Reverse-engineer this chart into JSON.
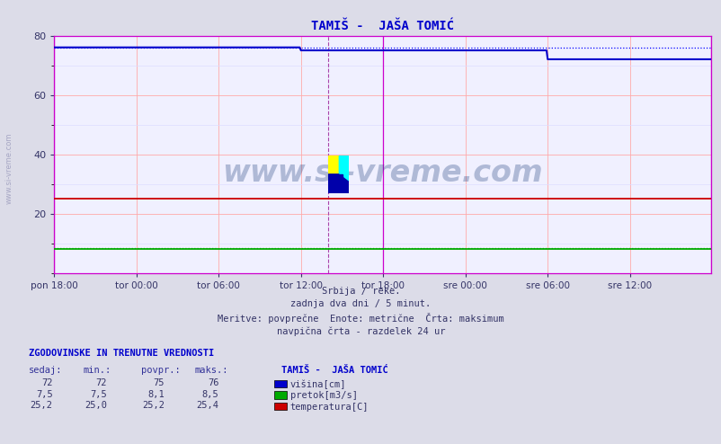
{
  "title": "TAMIŠ -  JAŠA TOMIĆ",
  "bg_color": "#dcdce8",
  "plot_bg_color": "#f0f0ff",
  "grid_color_major": "#ffaaaa",
  "grid_color_minor": "#ddddff",
  "ylim": [
    0,
    80
  ],
  "yticks": [
    20,
    40,
    60,
    80
  ],
  "xlabel_ticks": [
    "pon 18:00",
    "tor 00:00",
    "tor 06:00",
    "tor 12:00",
    "tor 18:00",
    "sre 00:00",
    "sre 06:00",
    "sre 12:00"
  ],
  "n_points": 576,
  "line_blue": "#0000cc",
  "line_green": "#00aa00",
  "line_red": "#cc0000",
  "dotted_blue": "#0000ff",
  "dotted_green": "#009900",
  "vline_magenta": "#cc00cc",
  "footer_line1": "Srbija / reke.",
  "footer_line2": "zadnja dva dni / 5 minut.",
  "footer_line3": "Meritve: povprečne  Enote: metrične  Črta: maksimum",
  "footer_line4": "navpična črta - razdelek 24 ur",
  "table_header": "ZGODOVINSKE IN TRENUTNE VREDNOSTI",
  "col_headers": [
    "sedaj:",
    "min.:",
    "povpr.:",
    "maks.:"
  ],
  "row1": [
    "72",
    "72",
    "75",
    "76"
  ],
  "row2": [
    "7,5",
    "7,5",
    "8,1",
    "8,5"
  ],
  "row3": [
    "25,2",
    "25,0",
    "25,2",
    "25,4"
  ],
  "legend_label": "TAMIŠ -  JAŠA TOMIĆ",
  "legend_items": [
    "višina[cm]",
    "pretok[m3/s]",
    "temperatura[C]"
  ],
  "legend_colors": [
    "#0000cc",
    "#00aa00",
    "#cc0000"
  ],
  "watermark": "www.si-vreme.com"
}
